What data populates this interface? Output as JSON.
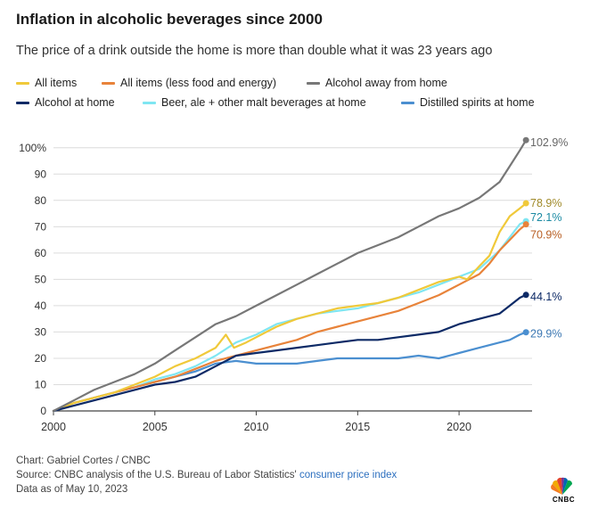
{
  "header": {
    "title": "Inflation in alcoholic beverages since 2000",
    "subtitle": "The price of a drink outside the home is more than double what it was 23 years ago"
  },
  "footer": {
    "chart_credit": "Chart: Gabriel Cortes / CNBC",
    "source_prefix": "Source: CNBC analysis of the U.S. Bureau of Labor Statistics'",
    "source_link": "consumer price index",
    "data_as_of": "Data as of May 10, 2023",
    "logo_text": "CNBC"
  },
  "chart_data": {
    "type": "line",
    "title": "Inflation in alcoholic beverages since 2000",
    "xlabel": "",
    "ylabel": "",
    "xlim": [
      2000,
      2023.6
    ],
    "ylim": [
      0,
      105
    ],
    "x_ticks": [
      2000,
      2005,
      2010,
      2015,
      2020
    ],
    "x_tick_labels": [
      "2000",
      "2005",
      "2010",
      "2015",
      "2020"
    ],
    "y_ticks": [
      0,
      10,
      20,
      30,
      40,
      50,
      60,
      70,
      80,
      90,
      100
    ],
    "y_tick_labels": [
      "0",
      "10",
      "20",
      "30",
      "40",
      "50",
      "60",
      "70",
      "80",
      "90",
      "100%"
    ],
    "grid": true,
    "legend_position": "top",
    "series": [
      {
        "name": "All items",
        "color": "#f0c93a",
        "end_label": "78.9%",
        "label_color": "#a08a2a",
        "x": [
          2000,
          2001,
          2002,
          2003,
          2004,
          2005,
          2006,
          2007,
          2008,
          2008.5,
          2008.9,
          2009.5,
          2010,
          2011,
          2012,
          2013,
          2014,
          2015,
          2016,
          2017,
          2018,
          2019,
          2020,
          2020.4,
          2021,
          2021.5,
          2022,
          2022.5,
          2023,
          2023.3
        ],
        "y": [
          0,
          3,
          5,
          7,
          10,
          13,
          17,
          20,
          24,
          29,
          24,
          26,
          28,
          32,
          35,
          37,
          39,
          40,
          41,
          43,
          46,
          49,
          51,
          50,
          55,
          59,
          68,
          74,
          77,
          78.9
        ]
      },
      {
        "name": "All items (less food and energy)",
        "color": "#e8833a",
        "end_label": "70.9%",
        "label_color": "#b85f24",
        "x": [
          2000,
          2001,
          2002,
          2003,
          2004,
          2005,
          2006,
          2007,
          2008,
          2009,
          2010,
          2011,
          2012,
          2013,
          2014,
          2015,
          2016,
          2017,
          2018,
          2019,
          2020,
          2021,
          2021.5,
          2022,
          2022.5,
          2023,
          2023.3
        ],
        "y": [
          0,
          3,
          5,
          7,
          9,
          11,
          13,
          16,
          19,
          21,
          23,
          25,
          27,
          30,
          32,
          34,
          36,
          38,
          41,
          44,
          48,
          52,
          56,
          61,
          65,
          69,
          70.9
        ]
      },
      {
        "name": "Alcohol away from home",
        "color": "#777777",
        "end_label": "102.9%",
        "label_color": "#666666",
        "x": [
          2000,
          2001,
          2002,
          2003,
          2004,
          2005,
          2006,
          2007,
          2008,
          2009,
          2010,
          2011,
          2012,
          2013,
          2014,
          2015,
          2016,
          2017,
          2018,
          2019,
          2020,
          2021,
          2022,
          2022.5,
          2023,
          2023.3
        ],
        "y": [
          0,
          4,
          8,
          11,
          14,
          18,
          23,
          28,
          33,
          36,
          40,
          44,
          48,
          52,
          56,
          60,
          63,
          66,
          70,
          74,
          77,
          81,
          87,
          93,
          99,
          102.9
        ]
      },
      {
        "name": "Alcohol at home",
        "color": "#0d2a66",
        "end_label": "44.1%",
        "label_color": "#0d2a66",
        "x": [
          2000,
          2001,
          2002,
          2003,
          2004,
          2005,
          2006,
          2007,
          2008,
          2009,
          2010,
          2011,
          2012,
          2013,
          2014,
          2015,
          2016,
          2017,
          2018,
          2019,
          2020,
          2021,
          2022,
          2022.5,
          2023,
          2023.3
        ],
        "y": [
          0,
          2,
          4,
          6,
          8,
          10,
          11,
          13,
          17,
          21,
          22,
          23,
          24,
          25,
          26,
          27,
          27,
          28,
          29,
          30,
          33,
          35,
          37,
          40,
          43,
          44.1
        ]
      },
      {
        "name": "Beer, ale + other malt beverages at home",
        "color": "#7fe6f2",
        "end_label": "72.1%",
        "label_color": "#1b8aa3",
        "x": [
          2000,
          2001,
          2002,
          2003,
          2004,
          2005,
          2006,
          2007,
          2008,
          2009,
          2010,
          2011,
          2012,
          2013,
          2014,
          2015,
          2016,
          2017,
          2018,
          2019,
          2020,
          2021,
          2022,
          2022.5,
          2023,
          2023.3
        ],
        "y": [
          0,
          3,
          5,
          7,
          9,
          12,
          14,
          17,
          21,
          26,
          29,
          33,
          35,
          37,
          38,
          39,
          41,
          43,
          45,
          48,
          51,
          54,
          61,
          66,
          71,
          72.1
        ]
      },
      {
        "name": "Distilled spirits at home",
        "color": "#4b8fd0",
        "end_label": "29.9%",
        "label_color": "#3d78b3",
        "x": [
          2000,
          2001,
          2002,
          2003,
          2004,
          2005,
          2006,
          2007,
          2008,
          2009,
          2010,
          2011,
          2012,
          2013,
          2014,
          2015,
          2016,
          2017,
          2018,
          2019,
          2020,
          2021,
          2022,
          2022.5,
          2023,
          2023.3
        ],
        "y": [
          0,
          3,
          5,
          7,
          9,
          11,
          13,
          15,
          18,
          19,
          18,
          18,
          18,
          19,
          20,
          20,
          20,
          20,
          21,
          20,
          22,
          24,
          26,
          27,
          29,
          29.9
        ]
      }
    ]
  }
}
